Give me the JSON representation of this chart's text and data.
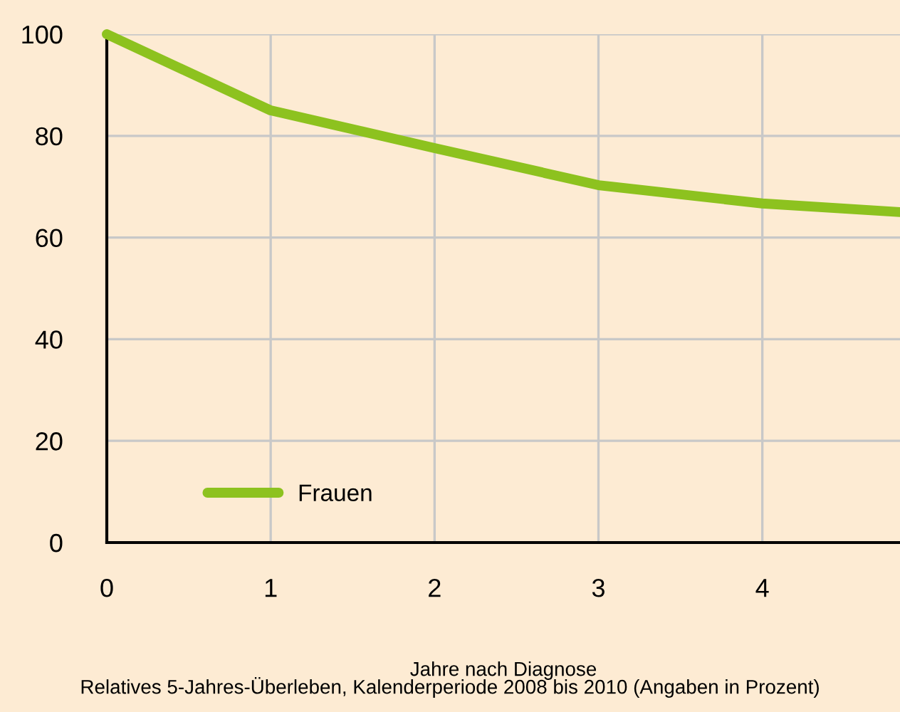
{
  "chart_data": {
    "type": "line",
    "xlabel": "Jahre nach Diagnose",
    "annotations": [
      "Relatives 5-Jahres-Überleben, Kalenderperiode 2008 bis 2010 (Angaben in Prozent)"
    ],
    "x": [
      0,
      1,
      2,
      3,
      4,
      4.84
    ],
    "series": [
      {
        "name": "Frauen",
        "color": "#8dc21f",
        "values": [
          100,
          85,
          77.6,
          70.3,
          66.7,
          65
        ]
      }
    ],
    "xlim": [
      0,
      4.84
    ],
    "xticks": [
      0,
      1,
      2,
      3,
      4
    ],
    "ylim": [
      0,
      100
    ],
    "yticks": [
      0,
      20,
      40,
      60,
      80,
      100
    ],
    "grid": true,
    "legend": "bottom left",
    "marker": "none",
    "line_style": "solid"
  }
}
